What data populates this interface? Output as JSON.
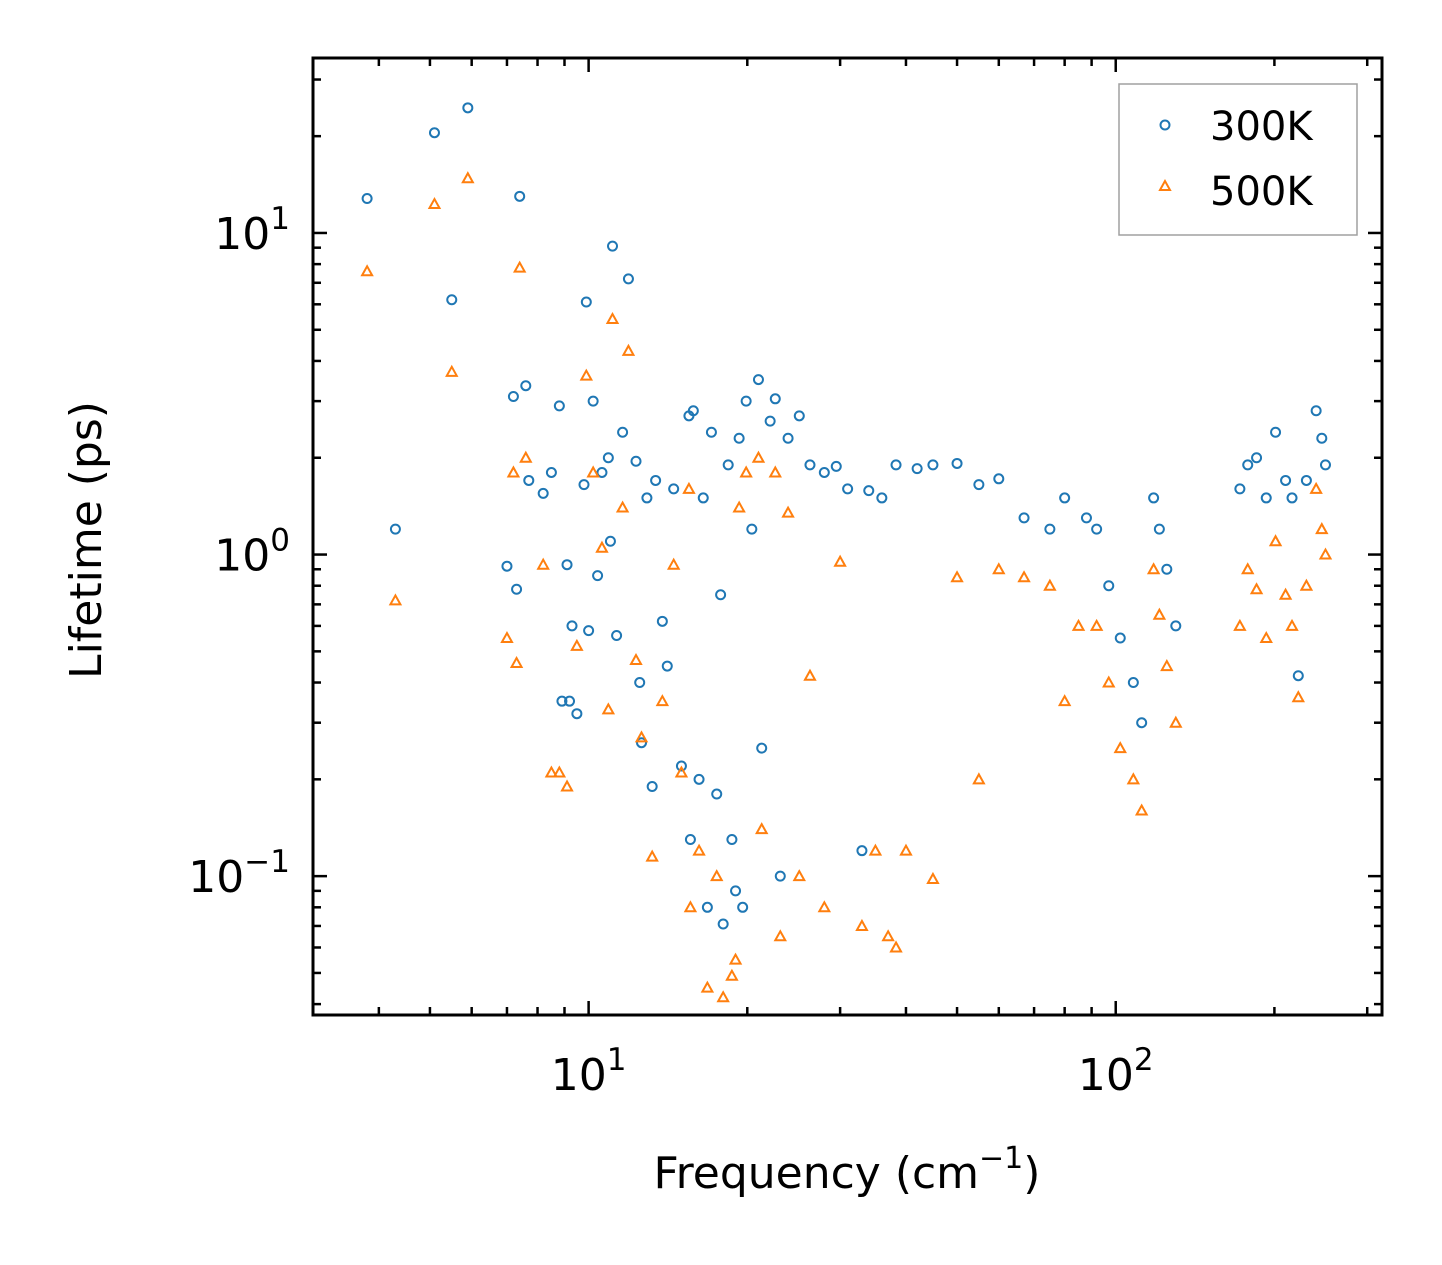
{
  "chart_data": {
    "type": "scatter",
    "xscale": "log",
    "yscale": "log",
    "xlim": [
      3.0,
      320
    ],
    "ylim": [
      0.037,
      35
    ],
    "xlabel": {
      "main": "Frequency (cm",
      "sup": "−1",
      "close": ")"
    },
    "ylabel": "Lifetime (ps)",
    "xticks": [
      {
        "value": 10,
        "base": "10",
        "exp": "1"
      },
      {
        "value": 100,
        "base": "10",
        "exp": "2"
      }
    ],
    "yticks": [
      {
        "value": 0.1,
        "base": "10",
        "exp": "−1"
      },
      {
        "value": 1,
        "base": "10",
        "exp": "0"
      },
      {
        "value": 10,
        "base": "10",
        "exp": "1"
      }
    ],
    "legend": {
      "position": "top-right"
    },
    "series": [
      {
        "name": "300K",
        "marker": "circle",
        "color": "#1f77b4",
        "points": [
          [
            3.8,
            12.8
          ],
          [
            4.3,
            1.2
          ],
          [
            5.1,
            20.5
          ],
          [
            5.5,
            6.2
          ],
          [
            5.9,
            24.5
          ],
          [
            7.0,
            0.92
          ],
          [
            7.2,
            3.1
          ],
          [
            7.3,
            0.78
          ],
          [
            7.4,
            13
          ],
          [
            7.6,
            3.35
          ],
          [
            7.7,
            1.7
          ],
          [
            8.2,
            1.55
          ],
          [
            8.5,
            1.8
          ],
          [
            8.8,
            2.9
          ],
          [
            8.9,
            0.35
          ],
          [
            9.1,
            0.93
          ],
          [
            9.2,
            0.35
          ],
          [
            9.3,
            0.6
          ],
          [
            9.5,
            0.32
          ],
          [
            9.8,
            1.65
          ],
          [
            9.9,
            6.1
          ],
          [
            10.0,
            0.58
          ],
          [
            10.2,
            3.0
          ],
          [
            10.4,
            0.86
          ],
          [
            10.6,
            1.8
          ],
          [
            10.9,
            2.0
          ],
          [
            11.0,
            1.1
          ],
          [
            11.1,
            9.1
          ],
          [
            11.3,
            0.56
          ],
          [
            11.6,
            2.4
          ],
          [
            11.9,
            7.2
          ],
          [
            12.3,
            1.95
          ],
          [
            12.5,
            0.4
          ],
          [
            12.6,
            0.26
          ],
          [
            12.9,
            1.5
          ],
          [
            13.2,
            0.19
          ],
          [
            13.4,
            1.7
          ],
          [
            13.8,
            0.62
          ],
          [
            14.1,
            0.45
          ],
          [
            14.5,
            1.6
          ],
          [
            15.0,
            0.22
          ],
          [
            15.5,
            2.7
          ],
          [
            15.6,
            0.13
          ],
          [
            15.8,
            2.8
          ],
          [
            16.2,
            0.2
          ],
          [
            16.5,
            1.5
          ],
          [
            16.8,
            0.08
          ],
          [
            17.1,
            2.4
          ],
          [
            17.5,
            0.18
          ],
          [
            17.8,
            0.75
          ],
          [
            18.0,
            0.071
          ],
          [
            18.4,
            1.9
          ],
          [
            18.7,
            0.13
          ],
          [
            19.0,
            0.09
          ],
          [
            19.3,
            2.3
          ],
          [
            19.6,
            0.08
          ],
          [
            19.9,
            3.0
          ],
          [
            20.4,
            1.2
          ],
          [
            21.0,
            3.5
          ],
          [
            21.3,
            0.25
          ],
          [
            22.1,
            2.6
          ],
          [
            22.6,
            3.05
          ],
          [
            23.1,
            0.1
          ],
          [
            23.9,
            2.3
          ],
          [
            25.1,
            2.7
          ],
          [
            26.3,
            1.9
          ],
          [
            28.0,
            1.8
          ],
          [
            29.5,
            1.88
          ],
          [
            31.0,
            1.6
          ],
          [
            33.0,
            0.12
          ],
          [
            34.0,
            1.58
          ],
          [
            36.0,
            1.5
          ],
          [
            38.3,
            1.9
          ],
          [
            42.0,
            1.85
          ],
          [
            45.0,
            1.9
          ],
          [
            50.0,
            1.92
          ],
          [
            55.0,
            1.65
          ],
          [
            60.0,
            1.72
          ],
          [
            67.0,
            1.3
          ],
          [
            75.0,
            1.2
          ],
          [
            80.0,
            1.5
          ],
          [
            88.0,
            1.3
          ],
          [
            92.0,
            1.2
          ],
          [
            97.0,
            0.8
          ],
          [
            102.0,
            0.55
          ],
          [
            108.0,
            0.4
          ],
          [
            112.0,
            0.3
          ],
          [
            118.0,
            1.5
          ],
          [
            121.0,
            1.2
          ],
          [
            125.0,
            0.9
          ],
          [
            130.0,
            0.6
          ],
          [
            172.0,
            1.6
          ],
          [
            178.0,
            1.9
          ],
          [
            185.0,
            2.0
          ],
          [
            193.0,
            1.5
          ],
          [
            201.0,
            2.4
          ],
          [
            210.0,
            1.7
          ],
          [
            216.0,
            1.5
          ],
          [
            222.0,
            0.42
          ],
          [
            230.0,
            1.7
          ],
          [
            240.0,
            2.8
          ],
          [
            246.0,
            2.3
          ],
          [
            250.0,
            1.9
          ]
        ]
      },
      {
        "name": "500K",
        "marker": "triangle",
        "color": "#ff7f0e",
        "points": [
          [
            3.8,
            7.6
          ],
          [
            4.3,
            0.72
          ],
          [
            5.1,
            12.3
          ],
          [
            5.5,
            3.7
          ],
          [
            5.9,
            14.8
          ],
          [
            7.0,
            0.55
          ],
          [
            7.2,
            1.8
          ],
          [
            7.3,
            0.46
          ],
          [
            7.4,
            7.8
          ],
          [
            7.6,
            2.0
          ],
          [
            8.2,
            0.93
          ],
          [
            8.5,
            0.21
          ],
          [
            8.8,
            0.21
          ],
          [
            9.1,
            0.19
          ],
          [
            9.5,
            0.52
          ],
          [
            9.9,
            3.6
          ],
          [
            10.2,
            1.8
          ],
          [
            10.6,
            1.05
          ],
          [
            10.9,
            0.33
          ],
          [
            11.1,
            5.4
          ],
          [
            11.6,
            1.4
          ],
          [
            11.9,
            4.3
          ],
          [
            12.3,
            0.47
          ],
          [
            12.6,
            0.27
          ],
          [
            13.2,
            0.115
          ],
          [
            13.8,
            0.35
          ],
          [
            14.5,
            0.93
          ],
          [
            15.0,
            0.21
          ],
          [
            15.5,
            1.6
          ],
          [
            15.6,
            0.08
          ],
          [
            16.2,
            0.12
          ],
          [
            16.8,
            0.045
          ],
          [
            17.5,
            0.1
          ],
          [
            18.0,
            0.042
          ],
          [
            18.7,
            0.049
          ],
          [
            19.0,
            0.055
          ],
          [
            19.3,
            1.4
          ],
          [
            19.9,
            1.8
          ],
          [
            21.0,
            2.0
          ],
          [
            21.3,
            0.14
          ],
          [
            22.6,
            1.8
          ],
          [
            23.1,
            0.065
          ],
          [
            23.9,
            1.35
          ],
          [
            25.1,
            0.1
          ],
          [
            26.3,
            0.42
          ],
          [
            28.0,
            0.08
          ],
          [
            30.0,
            0.95
          ],
          [
            33.0,
            0.07
          ],
          [
            35.0,
            0.12
          ],
          [
            37.0,
            0.065
          ],
          [
            38.3,
            0.06
          ],
          [
            40.0,
            0.12
          ],
          [
            45.0,
            0.098
          ],
          [
            50.0,
            0.85
          ],
          [
            55.0,
            0.2
          ],
          [
            60.0,
            0.9
          ],
          [
            67.0,
            0.85
          ],
          [
            75.0,
            0.8
          ],
          [
            80.0,
            0.35
          ],
          [
            85.0,
            0.6
          ],
          [
            92.0,
            0.6
          ],
          [
            97.0,
            0.4
          ],
          [
            102.0,
            0.25
          ],
          [
            108.0,
            0.2
          ],
          [
            112.0,
            0.16
          ],
          [
            118.0,
            0.9
          ],
          [
            121.0,
            0.65
          ],
          [
            125.0,
            0.45
          ],
          [
            130.0,
            0.3
          ],
          [
            172.0,
            0.6
          ],
          [
            178.0,
            0.9
          ],
          [
            185.0,
            0.78
          ],
          [
            193.0,
            0.55
          ],
          [
            201.0,
            1.1
          ],
          [
            210.0,
            0.75
          ],
          [
            216.0,
            0.6
          ],
          [
            222.0,
            0.36
          ],
          [
            230.0,
            0.8
          ],
          [
            240.0,
            1.6
          ],
          [
            246.0,
            1.2
          ],
          [
            250.0,
            1.0
          ]
        ]
      }
    ]
  }
}
